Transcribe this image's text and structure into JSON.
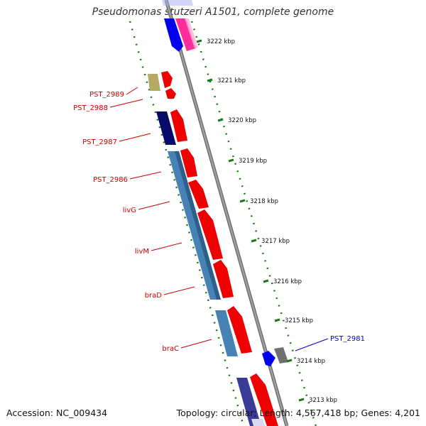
{
  "header": {
    "title": "Pseudomonas stutzeri A1501, complete genome"
  },
  "footer": {
    "accession": "Accession: NC_009434",
    "summary": "Topology: circular; Length: 4,567,418 bp; Genes: 4,201"
  },
  "colors": {
    "backbone": "#8a8a8a",
    "ticks": "#1a7a1a",
    "feature_red": "#ff0000",
    "gene_label": "#cc0000",
    "highlight_label": "#0000cc",
    "steel_blue": "#4682b4",
    "navy": "#1a1a7a",
    "olive": "#b5aa66"
  },
  "scale": {
    "unit": "kbp",
    "ticks": [
      {
        "value": 3222,
        "label": "3222 kbp"
      },
      {
        "value": 3221,
        "label": "3221 kbp"
      },
      {
        "value": 3220,
        "label": "3220 kbp"
      },
      {
        "value": 3219,
        "label": "3219 kbp"
      },
      {
        "value": 3218,
        "label": "3218 kbp"
      },
      {
        "value": 3217,
        "label": "3217 kbp"
      },
      {
        "value": 3216,
        "label": "3216 kbp"
      },
      {
        "value": 3215,
        "label": "3215 kbp"
      },
      {
        "value": 3214,
        "label": "3214 kbp"
      },
      {
        "value": 3213,
        "label": "3213 kbp"
      }
    ]
  },
  "gene_labels": [
    {
      "name": "PST_2989"
    },
    {
      "name": "PST_2988"
    },
    {
      "name": "PST_2987"
    },
    {
      "name": "PST_2986"
    },
    {
      "name": "livG"
    },
    {
      "name": "livM"
    },
    {
      "name": "braD"
    },
    {
      "name": "braC"
    },
    {
      "name": "PST_2981"
    }
  ]
}
